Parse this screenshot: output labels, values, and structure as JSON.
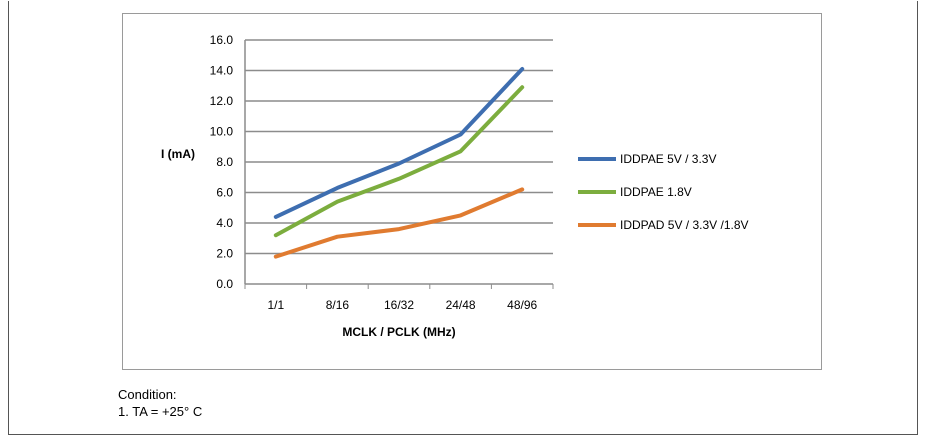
{
  "chart_data": {
    "type": "line",
    "categories": [
      "1/1",
      "8/16",
      "16/32",
      "24/48",
      "48/96"
    ],
    "xlabel": "MCLK / PCLK (MHz)",
    "ylabel": "I (mA)",
    "ylim": [
      0,
      16
    ],
    "yticks": [
      "0.0",
      "2.0",
      "4.0",
      "6.0",
      "8.0",
      "10.0",
      "12.0",
      "14.0",
      "16.0"
    ],
    "grid": true,
    "legend_position": "right",
    "series": [
      {
        "name": "IDDPAE 5V / 3.3V",
        "color": "#3e6eb0",
        "values": [
          4.4,
          6.3,
          7.9,
          9.8,
          14.1
        ]
      },
      {
        "name": "IDDPAE 1.8V",
        "color": "#7cad3e",
        "values": [
          3.2,
          5.4,
          6.9,
          8.7,
          12.9
        ]
      },
      {
        "name": "IDDPAD 5V / 3.3V  /1.8V",
        "color": "#e07b30",
        "values": [
          1.8,
          3.1,
          3.6,
          4.5,
          6.2
        ]
      }
    ]
  },
  "notes": {
    "line1": "Condition:",
    "line2": "1. TA = +25° C"
  }
}
